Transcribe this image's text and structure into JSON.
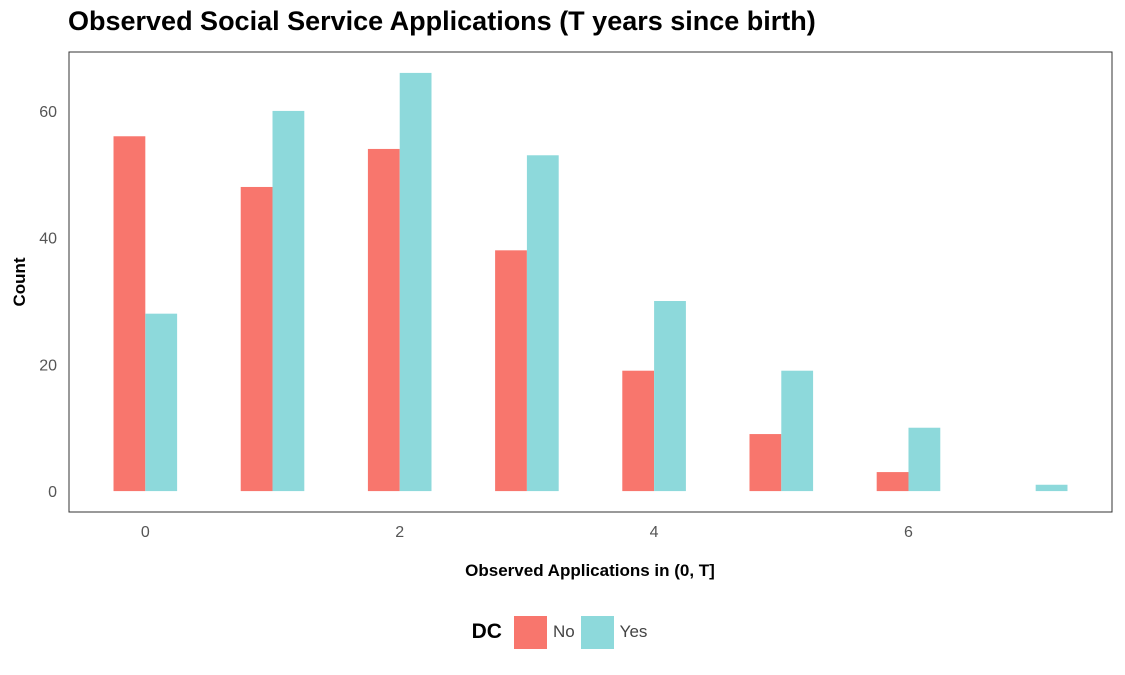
{
  "chart_data": {
    "type": "bar",
    "title": "Observed Social Service Applications (T years since birth)",
    "xlabel": "Observed Applications in (0, T]",
    "ylabel": "Count",
    "categories": [
      0,
      1,
      2,
      3,
      4,
      5,
      6,
      7
    ],
    "series": [
      {
        "name": "No",
        "color": "#F8766D",
        "values": [
          56,
          48,
          54,
          38,
          19,
          9,
          3,
          0
        ]
      },
      {
        "name": "Yes",
        "color": "#8DD9DB",
        "values": [
          28,
          60,
          66,
          53,
          30,
          19,
          10,
          1
        ]
      }
    ],
    "xlim": [
      -0.6,
      7.6
    ],
    "ylim": [
      -3.3,
      69.3
    ],
    "x_ticks": [
      0,
      2,
      4,
      6
    ],
    "y_ticks": [
      0,
      20,
      40,
      60
    ],
    "grid": false,
    "legend": {
      "title": "DC",
      "position": "bottom"
    }
  }
}
